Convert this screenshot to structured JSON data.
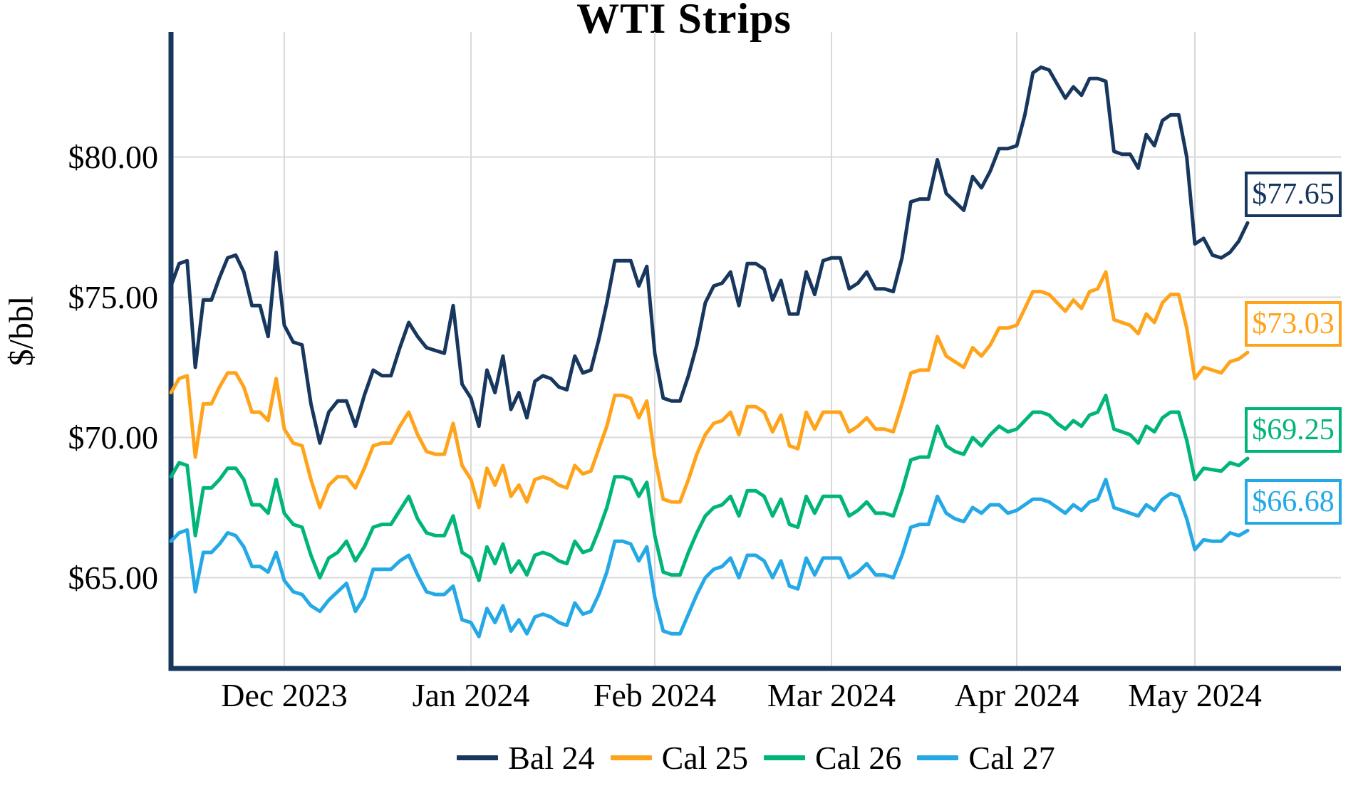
{
  "title": "WTI Strips",
  "y_axis": {
    "label": "$/bbl",
    "ticks": [
      {
        "label": "$80.00",
        "value": 80
      },
      {
        "label": "$75.00",
        "value": 75
      },
      {
        "label": "$70.00",
        "value": 70
      },
      {
        "label": "$65.00",
        "value": 65
      }
    ]
  },
  "x_axis": {
    "ticks": [
      {
        "label": "Dec 2023",
        "day": 14
      },
      {
        "label": "Jan 2024",
        "day": 35
      },
      {
        "label": "Feb 2024",
        "day": 58
      },
      {
        "label": "Mar 2024",
        "day": 79
      },
      {
        "label": "Apr 2024",
        "day": 100
      },
      {
        "label": "May 2024",
        "day": 122
      }
    ]
  },
  "legend": [
    {
      "label": "Bal 24",
      "color": "#17375E"
    },
    {
      "label": "Cal 25",
      "color": "#FFA31A"
    },
    {
      "label": "Cal 26",
      "color": "#00B577"
    },
    {
      "label": "Cal 27",
      "color": "#24A9E6"
    }
  ],
  "chart_data": {
    "type": "line",
    "title": "WTI Strips",
    "ylabel": "$/bbl",
    "ylim": [
      61.8,
      84.5
    ],
    "grid": true,
    "grid_color": "#D9D9D9",
    "axis_color": "#17375E",
    "background": "#FFFFFF",
    "legend_position": "bottom",
    "x_unit": "trading-day index, ~mid-Nov 2023 (day 0) through ~May 9 2024 (day 128)",
    "x_tick_days": [
      14,
      35,
      58,
      79,
      100,
      122
    ],
    "x_tick_labels": [
      "Dec 2023",
      "Jan 2024",
      "Feb 2024",
      "Mar 2024",
      "Apr 2024",
      "May 2024"
    ],
    "series": [
      {
        "name": "Bal 24",
        "color": "#17375E",
        "end_label": "$77.65",
        "last_value": 77.65,
        "values": [
          75.4,
          76.2,
          76.3,
          72.5,
          74.9,
          74.9,
          75.7,
          76.4,
          76.5,
          75.9,
          74.7,
          74.7,
          73.6,
          76.6,
          74.0,
          73.4,
          73.3,
          71.2,
          69.8,
          70.9,
          71.3,
          71.3,
          70.4,
          71.5,
          72.4,
          72.2,
          72.2,
          73.2,
          74.1,
          73.6,
          73.2,
          73.1,
          73.0,
          74.7,
          71.9,
          71.4,
          70.4,
          72.4,
          71.6,
          72.9,
          71.0,
          71.6,
          70.7,
          72.0,
          72.2,
          72.1,
          71.8,
          71.7,
          72.9,
          72.3,
          72.4,
          73.5,
          74.8,
          76.3,
          76.3,
          76.3,
          75.4,
          76.1,
          73.0,
          71.4,
          71.3,
          71.3,
          72.2,
          73.3,
          74.8,
          75.4,
          75.5,
          75.9,
          74.7,
          76.2,
          76.2,
          76.0,
          74.9,
          75.6,
          74.4,
          74.4,
          75.9,
          75.1,
          76.3,
          76.4,
          76.4,
          75.3,
          75.5,
          75.9,
          75.3,
          75.3,
          75.2,
          76.4,
          78.4,
          78.5,
          78.5,
          79.9,
          78.7,
          78.4,
          78.1,
          79.3,
          78.9,
          79.5,
          80.3,
          80.3,
          80.4,
          81.5,
          83.0,
          83.2,
          83.1,
          82.6,
          82.1,
          82.5,
          82.2,
          82.8,
          82.8,
          82.7,
          80.2,
          80.1,
          80.1,
          79.6,
          80.8,
          80.4,
          81.3,
          81.5,
          81.5,
          80.0,
          76.9,
          77.1,
          76.5,
          76.4,
          76.6,
          77.0,
          77.65
        ]
      },
      {
        "name": "Cal 25",
        "color": "#FFA31A",
        "end_label": "$73.03",
        "last_value": 73.03,
        "values": [
          71.6,
          72.1,
          72.2,
          69.3,
          71.2,
          71.2,
          71.8,
          72.3,
          72.3,
          71.8,
          70.9,
          70.9,
          70.6,
          72.1,
          70.3,
          69.8,
          69.7,
          68.5,
          67.5,
          68.3,
          68.6,
          68.6,
          68.2,
          68.9,
          69.7,
          69.8,
          69.8,
          70.4,
          70.9,
          70.1,
          69.5,
          69.4,
          69.4,
          70.5,
          69.0,
          68.5,
          67.5,
          68.9,
          68.3,
          69.0,
          67.9,
          68.3,
          67.7,
          68.5,
          68.6,
          68.5,
          68.3,
          68.2,
          69.0,
          68.7,
          68.8,
          69.6,
          70.4,
          71.5,
          71.5,
          71.4,
          70.7,
          71.3,
          69.3,
          67.8,
          67.7,
          67.7,
          68.5,
          69.4,
          70.1,
          70.5,
          70.6,
          70.9,
          70.1,
          71.1,
          71.1,
          70.9,
          70.2,
          70.8,
          69.7,
          69.6,
          70.9,
          70.3,
          70.9,
          70.9,
          70.9,
          70.2,
          70.4,
          70.7,
          70.3,
          70.3,
          70.2,
          71.2,
          72.3,
          72.4,
          72.4,
          73.6,
          72.9,
          72.7,
          72.5,
          73.2,
          72.9,
          73.3,
          73.9,
          73.9,
          74.0,
          74.6,
          75.2,
          75.2,
          75.1,
          74.8,
          74.5,
          74.9,
          74.6,
          75.2,
          75.3,
          75.9,
          74.2,
          74.1,
          74.0,
          73.7,
          74.4,
          74.1,
          74.8,
          75.1,
          75.1,
          73.9,
          72.1,
          72.5,
          72.4,
          72.3,
          72.7,
          72.8,
          73.03
        ]
      },
      {
        "name": "Cal 26",
        "color": "#00B577",
        "end_label": "$69.25",
        "last_value": 69.25,
        "values": [
          68.6,
          69.1,
          69.0,
          66.5,
          68.2,
          68.2,
          68.5,
          68.9,
          68.9,
          68.5,
          67.6,
          67.6,
          67.3,
          68.5,
          67.3,
          66.9,
          66.8,
          65.8,
          65.0,
          65.7,
          65.9,
          66.3,
          65.6,
          66.1,
          66.8,
          66.9,
          66.9,
          67.4,
          67.9,
          67.1,
          66.6,
          66.5,
          66.5,
          67.2,
          65.9,
          65.7,
          64.9,
          66.1,
          65.5,
          66.2,
          65.2,
          65.6,
          65.1,
          65.8,
          65.9,
          65.8,
          65.6,
          65.5,
          66.3,
          65.9,
          66.0,
          66.7,
          67.5,
          68.6,
          68.6,
          68.5,
          67.9,
          68.4,
          66.5,
          65.2,
          65.1,
          65.1,
          65.9,
          66.6,
          67.2,
          67.5,
          67.6,
          67.9,
          67.2,
          68.1,
          68.1,
          67.9,
          67.2,
          67.8,
          66.9,
          66.8,
          67.9,
          67.3,
          67.9,
          67.9,
          67.9,
          67.2,
          67.4,
          67.7,
          67.3,
          67.3,
          67.2,
          68.1,
          69.2,
          69.3,
          69.3,
          70.4,
          69.7,
          69.5,
          69.4,
          70.0,
          69.7,
          70.1,
          70.4,
          70.2,
          70.3,
          70.6,
          70.9,
          70.9,
          70.8,
          70.5,
          70.3,
          70.6,
          70.4,
          70.8,
          70.9,
          71.5,
          70.3,
          70.2,
          70.1,
          69.8,
          70.4,
          70.2,
          70.7,
          70.9,
          70.9,
          69.9,
          68.5,
          68.9,
          68.85,
          68.8,
          69.1,
          69.0,
          69.25
        ]
      },
      {
        "name": "Cal 27",
        "color": "#24A9E6",
        "end_label": "$66.68",
        "last_value": 66.68,
        "values": [
          66.3,
          66.6,
          66.7,
          64.5,
          65.9,
          65.9,
          66.2,
          66.6,
          66.5,
          66.1,
          65.4,
          65.4,
          65.2,
          65.9,
          64.9,
          64.5,
          64.4,
          64.0,
          63.8,
          64.2,
          64.5,
          64.8,
          63.8,
          64.3,
          65.3,
          65.3,
          65.3,
          65.6,
          65.8,
          65.1,
          64.5,
          64.4,
          64.4,
          64.7,
          63.5,
          63.4,
          62.9,
          63.9,
          63.4,
          64.0,
          63.1,
          63.5,
          63.0,
          63.6,
          63.7,
          63.6,
          63.4,
          63.3,
          64.1,
          63.7,
          63.8,
          64.4,
          65.2,
          66.3,
          66.3,
          66.2,
          65.6,
          66.1,
          64.3,
          63.1,
          63.0,
          63.0,
          63.7,
          64.4,
          65.0,
          65.3,
          65.4,
          65.7,
          65.0,
          65.8,
          65.8,
          65.6,
          65.0,
          65.6,
          64.7,
          64.6,
          65.7,
          65.1,
          65.7,
          65.7,
          65.7,
          65.0,
          65.2,
          65.5,
          65.1,
          65.1,
          65.0,
          65.8,
          66.8,
          66.9,
          66.9,
          67.9,
          67.3,
          67.1,
          67.0,
          67.5,
          67.3,
          67.6,
          67.6,
          67.3,
          67.4,
          67.6,
          67.8,
          67.8,
          67.7,
          67.5,
          67.3,
          67.6,
          67.4,
          67.7,
          67.8,
          68.5,
          67.5,
          67.4,
          67.3,
          67.2,
          67.6,
          67.4,
          67.8,
          68.0,
          67.9,
          67.1,
          66.0,
          66.35,
          66.3,
          66.3,
          66.6,
          66.5,
          66.68
        ]
      }
    ]
  }
}
